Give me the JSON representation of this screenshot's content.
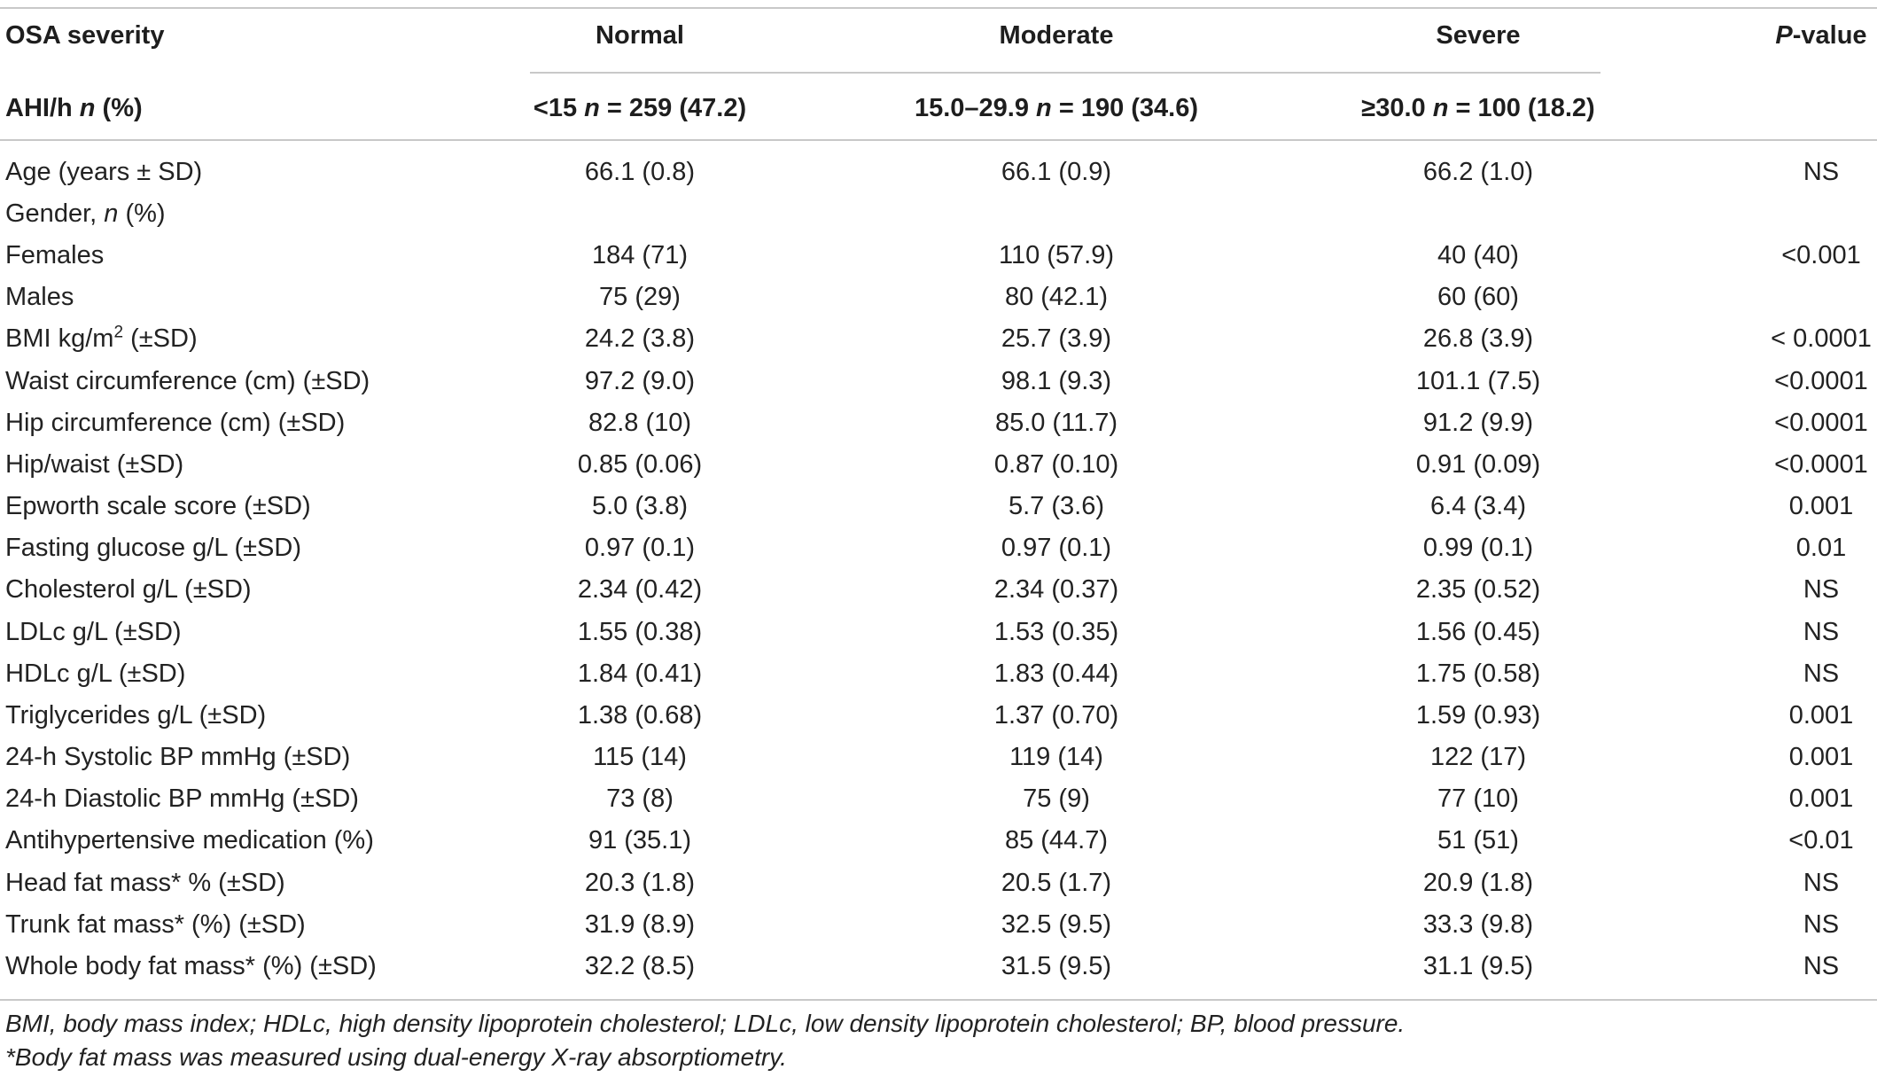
{
  "table": {
    "header": {
      "row1": {
        "col0": "OSA severity",
        "col1": "Normal",
        "col2": "Moderate",
        "col3": "Severe",
        "col4_italic": "P",
        "col4_rest": "-value"
      },
      "row2": {
        "col0_a": "AHI/h ",
        "col0_n": "n",
        "col0_b": " (%)",
        "col1_a": "<15 ",
        "col1_n": "n",
        "col1_b": " = 259 (47.2)",
        "col2_a": "15.0–29.9 ",
        "col2_n": "n",
        "col2_b": " = 190 (34.6)",
        "col3_a": "≥30.0 ",
        "col3_n": "n",
        "col3_b": " = 100 (18.2)"
      }
    },
    "rows": [
      {
        "label": "Age (years ± SD)",
        "normal": "66.1 (0.8)",
        "moderate": "66.1 (0.9)",
        "severe": "66.2 (1.0)",
        "p": "NS"
      },
      {
        "label_a": "Gender, ",
        "label_n": "n",
        "label_b": " (%)",
        "normal": "",
        "moderate": "",
        "severe": "",
        "p": ""
      },
      {
        "label": "Females",
        "normal": "184 (71)",
        "moderate": "110 (57.9)",
        "severe": "40 (40)",
        "p": "<0.001"
      },
      {
        "label": "Males",
        "normal": "75 (29)",
        "moderate": "80 (42.1)",
        "severe": "60 (60)",
        "p": ""
      },
      {
        "label_a": "BMI kg/m",
        "label_sup": "2",
        "label_b": " (±SD)",
        "normal": "24.2 (3.8)",
        "moderate": "25.7 (3.9)",
        "severe": "26.8 (3.9)",
        "p": "< 0.0001"
      },
      {
        "label": "Waist circumference (cm) (±SD)",
        "normal": "97.2 (9.0)",
        "moderate": "98.1 (9.3)",
        "severe": "101.1 (7.5)",
        "p": "<0.0001"
      },
      {
        "label": "Hip circumference (cm) (±SD)",
        "normal": "82.8 (10)",
        "moderate": "85.0 (11.7)",
        "severe": "91.2 (9.9)",
        "p": "<0.0001"
      },
      {
        "label": "Hip/waist (±SD)",
        "normal": "0.85 (0.06)",
        "moderate": "0.87 (0.10)",
        "severe": "0.91 (0.09)",
        "p": "<0.0001"
      },
      {
        "label": "Epworth scale score (±SD)",
        "normal": "5.0 (3.8)",
        "moderate": "5.7 (3.6)",
        "severe": "6.4 (3.4)",
        "p": "0.001"
      },
      {
        "label": "Fasting glucose g/L (±SD)",
        "normal": "0.97 (0.1)",
        "moderate": "0.97 (0.1)",
        "severe": "0.99 (0.1)",
        "p": "0.01"
      },
      {
        "label": "Cholesterol g/L (±SD)",
        "normal": "2.34 (0.42)",
        "moderate": "2.34 (0.37)",
        "severe": "2.35 (0.52)",
        "p": "NS"
      },
      {
        "label": "LDLc g/L (±SD)",
        "normal": "1.55 (0.38)",
        "moderate": "1.53 (0.35)",
        "severe": "1.56 (0.45)",
        "p": "NS"
      },
      {
        "label": "HDLc g/L (±SD)",
        "normal": "1.84 (0.41)",
        "moderate": "1.83 (0.44)",
        "severe": "1.75 (0.58)",
        "p": "NS"
      },
      {
        "label": "Triglycerides g/L (±SD)",
        "normal": "1.38 (0.68)",
        "moderate": "1.37 (0.70)",
        "severe": "1.59 (0.93)",
        "p": "0.001"
      },
      {
        "label": "24-h Systolic BP mmHg (±SD)",
        "normal": "115 (14)",
        "moderate": "119 (14)",
        "severe": "122 (17)",
        "p": "0.001"
      },
      {
        "label": "24-h Diastolic BP mmHg (±SD)",
        "normal": "73 (8)",
        "moderate": "75 (9)",
        "severe": "77 (10)",
        "p": "0.001"
      },
      {
        "label": "Antihypertensive medication (%)",
        "normal": "91 (35.1)",
        "moderate": "85 (44.7)",
        "severe": "51 (51)",
        "p": "<0.01"
      },
      {
        "label": "Head fat mass* % (±SD)",
        "normal": "20.3 (1.8)",
        "moderate": "20.5 (1.7)",
        "severe": "20.9 (1.8)",
        "p": "NS"
      },
      {
        "label": "Trunk fat mass* (%) (±SD)",
        "normal": "31.9 (8.9)",
        "moderate": "32.5 (9.5)",
        "severe": "33.3 (9.8)",
        "p": "NS"
      },
      {
        "label": "Whole body fat mass* (%) (±SD)",
        "normal": "32.2 (8.5)",
        "moderate": "31.5 (9.5)",
        "severe": "31.1 (9.5)",
        "p": "NS"
      }
    ],
    "footnotes": [
      "BMI, body mass index; HDLc, high density lipoprotein cholesterol; LDLc, low density lipoprotein cholesterol; BP, blood pressure.",
      "*Body fat mass was measured using dual-energy X-ray absorptiometry."
    ]
  }
}
